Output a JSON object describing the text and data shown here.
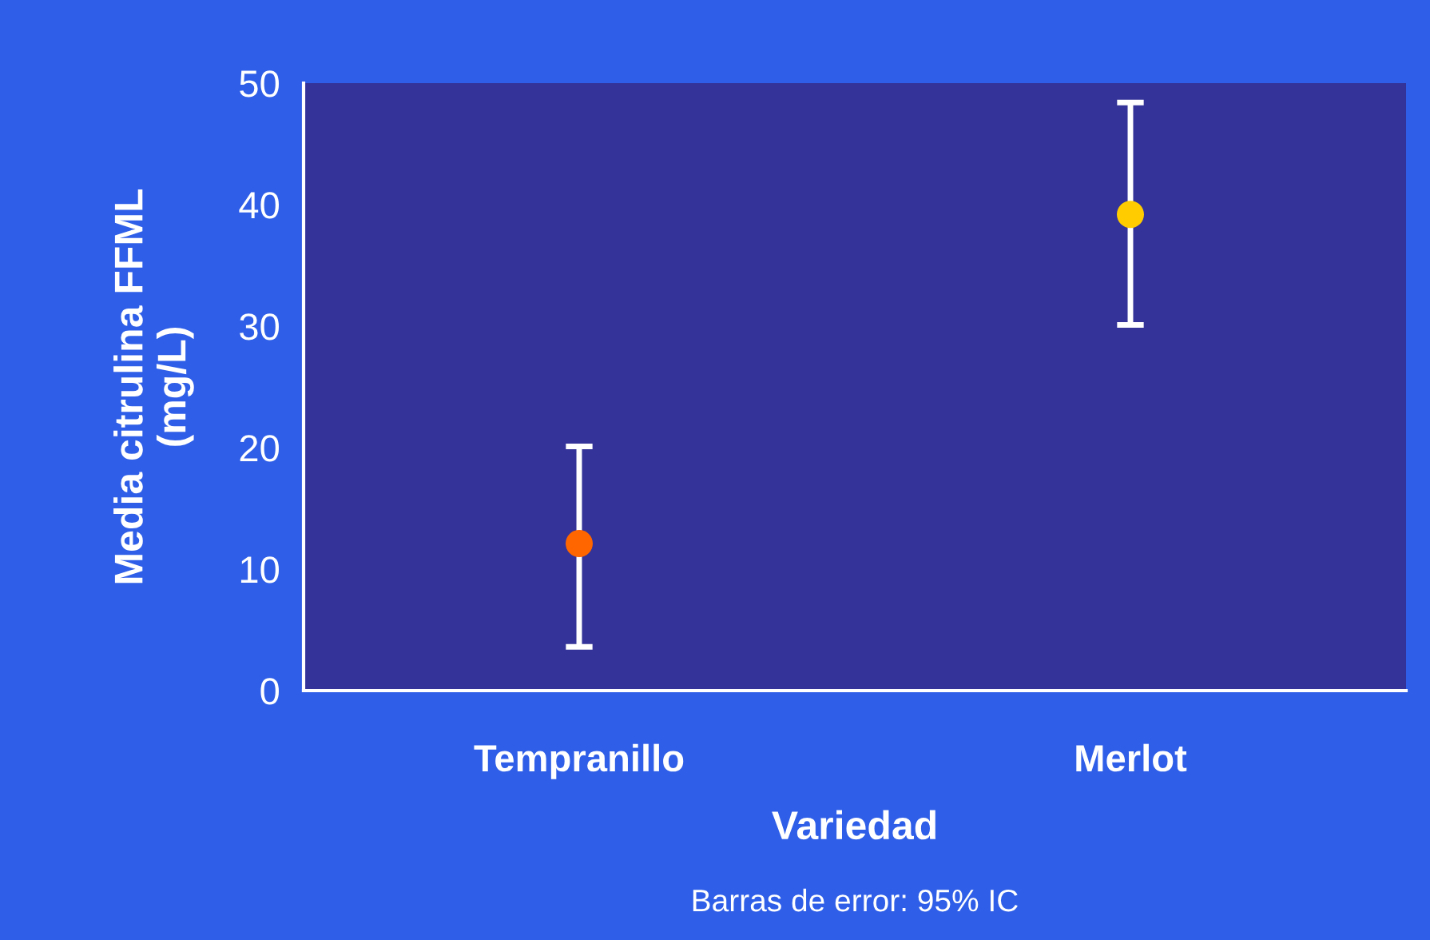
{
  "chart_data": {
    "type": "scatter",
    "categories": [
      "Tempranillo",
      "Merlot"
    ],
    "values": [
      12.1,
      39.2
    ],
    "colors": [
      "#ff6600",
      "#ffcc00"
    ],
    "errors": [
      [
        3.6,
        20.1
      ],
      [
        30.1,
        48.4
      ]
    ],
    "marker": "circle",
    "ylim": [
      0,
      50
    ],
    "yticks": [
      0,
      10,
      20,
      30,
      40,
      50
    ],
    "xlabel": "Variedad",
    "ylabel": "Media citrulina FFML\n(mg/L)",
    "annotations": [
      "Barras de error: 95% IC"
    ],
    "grid": false
  }
}
